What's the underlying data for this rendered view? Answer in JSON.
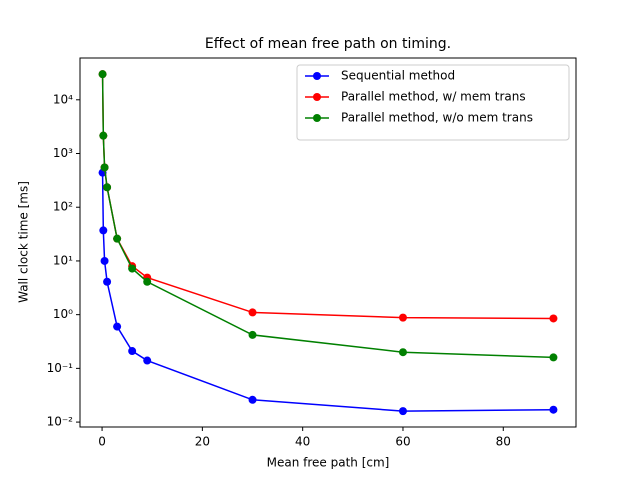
{
  "chart_data": {
    "type": "line",
    "title": "Effect of mean free path on timing.",
    "xlabel": "Mean free path [cm]",
    "ylabel": "Wall clock time [ms]",
    "x": [
      0.1,
      0.25,
      0.5,
      1,
      3,
      6,
      9,
      30,
      60,
      90
    ],
    "series": [
      {
        "name": "Sequential method",
        "color": "#0000ff",
        "values": [
          440,
          37,
          10,
          4.1,
          0.6,
          0.21,
          0.14,
          0.026,
          0.016,
          0.017
        ]
      },
      {
        "name": "Parallel method, w/ mem trans",
        "color": "#ff0000",
        "values": [
          30000,
          2150,
          550,
          235,
          26,
          8,
          4.9,
          1.1,
          0.88,
          0.85
        ]
      },
      {
        "name": "Parallel method, w/o mem trans",
        "color": "#008000",
        "values": [
          30000,
          2150,
          550,
          235,
          26,
          7.2,
          4.1,
          0.42,
          0.2,
          0.16
        ]
      }
    ],
    "xlim": [
      -4.4,
      94.5
    ],
    "xticks": [
      0,
      20,
      40,
      60,
      80
    ],
    "ylim": [
      0.0081,
      60000
    ],
    "yscale": "log",
    "yticks": [
      {
        "value": 0.01,
        "label": "10⁻²"
      },
      {
        "value": 0.1,
        "label": "10⁻¹"
      },
      {
        "value": 1,
        "label": "10⁰"
      },
      {
        "value": 10,
        "label": "10¹"
      },
      {
        "value": 100,
        "label": "10²"
      },
      {
        "value": 1000,
        "label": "10³"
      },
      {
        "value": 10000,
        "label": "10⁴"
      }
    ],
    "legend": "upper right"
  }
}
